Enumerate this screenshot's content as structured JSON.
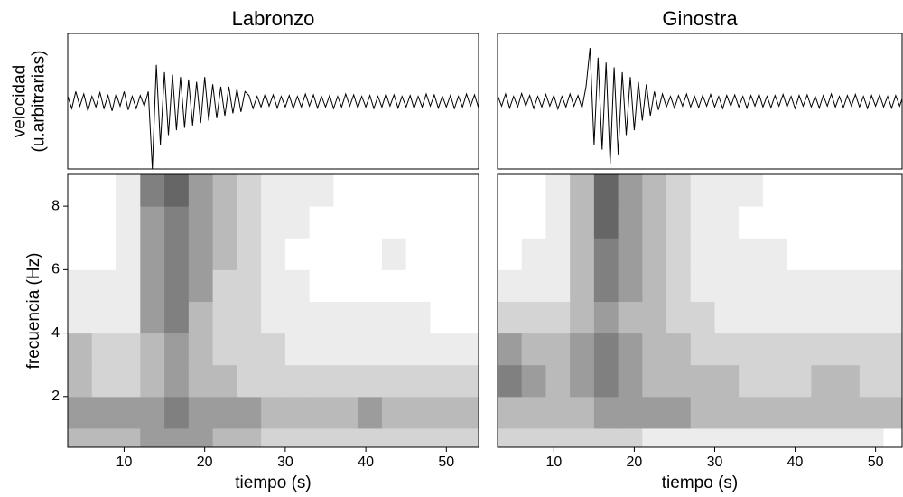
{
  "chart_data": [
    {
      "type": "line",
      "title": "Labronzo",
      "ylabel": [
        "velocidad",
        "(u.arbitrarias)"
      ],
      "color": "#000000",
      "xlim": [
        3,
        54
      ],
      "ylim": [
        -1.4,
        1.4
      ],
      "x": [
        3,
        3.5,
        4,
        4.5,
        5,
        5.5,
        6,
        6.5,
        7,
        7.5,
        8,
        8.5,
        9,
        9.5,
        10,
        10.5,
        11,
        11.5,
        12,
        12.5,
        13,
        13.5,
        14,
        14.5,
        15,
        15.5,
        16,
        16.5,
        17,
        17.5,
        18,
        18.5,
        19,
        19.5,
        20,
        20.5,
        21,
        21.5,
        22,
        22.5,
        23,
        23.5,
        24,
        24.5,
        25,
        25.5,
        26,
        26.5,
        27,
        27.5,
        28,
        28.5,
        29,
        29.5,
        30,
        30.5,
        31,
        31.5,
        32,
        32.5,
        33,
        33.5,
        34,
        34.5,
        35,
        35.5,
        36,
        36.5,
        37,
        37.5,
        38,
        38.5,
        39,
        39.5,
        40,
        40.5,
        41,
        41.5,
        42,
        42.5,
        43,
        43.5,
        44,
        44.5,
        45,
        45.5,
        46,
        46.5,
        47,
        47.5,
        48,
        48.5,
        49,
        49.5,
        50,
        50.5,
        51,
        51.5,
        52,
        52.5,
        53,
        53.5,
        54
      ],
      "values": [
        0.1,
        -0.15,
        0.2,
        -0.1,
        0.15,
        -0.2,
        0.1,
        -0.12,
        0.18,
        -0.15,
        0.12,
        -0.2,
        0.15,
        -0.1,
        0.2,
        -0.18,
        0.1,
        -0.15,
        0.12,
        -0.1,
        0.2,
        -1.4,
        0.75,
        -0.9,
        0.6,
        -0.7,
        0.55,
        -0.6,
        0.5,
        -0.55,
        0.45,
        -0.5,
        0.4,
        -0.45,
        0.5,
        -0.4,
        0.35,
        -0.35,
        0.3,
        -0.3,
        0.3,
        -0.25,
        0.25,
        -0.22,
        0.2,
        0.12,
        -0.15,
        0.1,
        -0.12,
        0.15,
        -0.1,
        0.13,
        -0.14,
        0.1,
        -0.12,
        0.12,
        -0.15,
        0.1,
        -0.12,
        0.15,
        -0.1,
        0.13,
        -0.14,
        0.1,
        -0.12,
        0.12,
        -0.15,
        0.1,
        -0.12,
        0.15,
        -0.1,
        0.13,
        -0.14,
        0.1,
        -0.12,
        0.12,
        -0.15,
        0.1,
        -0.12,
        0.15,
        -0.1,
        0.13,
        -0.14,
        0.1,
        -0.12,
        0.12,
        -0.15,
        0.1,
        -0.12,
        0.15,
        -0.1,
        0.13,
        -0.14,
        0.1,
        -0.12,
        0.12,
        -0.15,
        0.1,
        -0.12,
        0.15,
        -0.1,
        0.13,
        -0.14
      ]
    },
    {
      "type": "heatmap",
      "xlabel": "tiempo (s)",
      "ylabel": [
        "frecuencia (Hz)"
      ],
      "xlim": [
        3,
        54
      ],
      "ylim": [
        0.4,
        9
      ],
      "xticks": [
        10,
        20,
        30,
        40,
        50
      ],
      "yticks": [
        2,
        4,
        6,
        8
      ],
      "colors": [
        "#ffffff",
        "#ececec",
        "#d4d4d4",
        "#bababa",
        "#9c9c9c",
        "#808080",
        "#666666"
      ],
      "xbins": [
        3,
        6,
        9,
        12,
        15,
        18,
        21,
        24,
        27,
        30,
        33,
        36,
        39,
        42,
        45,
        48,
        51,
        54
      ],
      "ybins": [
        0.4,
        1,
        2,
        3,
        4,
        5,
        6,
        7,
        8,
        9
      ],
      "z": [
        [
          3,
          3,
          3,
          4,
          4,
          4,
          3,
          3,
          2,
          2,
          2,
          2,
          2,
          2,
          2,
          2,
          2
        ],
        [
          4,
          4,
          4,
          4,
          5,
          4,
          4,
          4,
          3,
          3,
          3,
          3,
          4,
          3,
          3,
          3,
          3
        ],
        [
          3,
          2,
          2,
          3,
          4,
          3,
          3,
          2,
          2,
          2,
          2,
          2,
          2,
          2,
          2,
          2,
          2
        ],
        [
          3,
          2,
          2,
          3,
          4,
          3,
          2,
          2,
          2,
          1,
          1,
          1,
          1,
          1,
          1,
          1,
          1
        ],
        [
          1,
          1,
          1,
          4,
          5,
          3,
          2,
          2,
          1,
          1,
          1,
          1,
          1,
          1,
          1,
          0,
          0
        ],
        [
          1,
          1,
          1,
          4,
          5,
          4,
          2,
          2,
          1,
          1,
          0,
          0,
          0,
          0,
          0,
          0,
          0
        ],
        [
          0,
          0,
          1,
          4,
          5,
          4,
          3,
          2,
          1,
          0,
          0,
          0,
          0,
          1,
          0,
          0,
          0
        ],
        [
          0,
          0,
          1,
          4,
          5,
          4,
          3,
          2,
          1,
          1,
          0,
          0,
          0,
          0,
          0,
          0,
          0
        ],
        [
          0,
          0,
          1,
          5,
          6,
          4,
          3,
          2,
          1,
          1,
          1,
          0,
          0,
          0,
          0,
          0,
          0
        ]
      ]
    },
    {
      "type": "line",
      "title": "Ginostra",
      "color": "#000000",
      "xlim": [
        3,
        53.3
      ],
      "ylim": [
        -1.4,
        1.4
      ],
      "x": [
        3,
        3.5,
        4,
        4.5,
        5,
        5.5,
        6,
        6.5,
        7,
        7.5,
        8,
        8.5,
        9,
        9.5,
        10,
        10.5,
        11,
        11.5,
        12,
        12.5,
        13,
        13.5,
        14,
        14.5,
        15,
        15.5,
        16,
        16.5,
        17,
        17.5,
        18,
        18.5,
        19,
        19.5,
        20,
        20.5,
        21,
        21.5,
        22,
        22.5,
        23,
        23.5,
        24,
        24.5,
        25,
        25.5,
        26,
        26.5,
        27,
        27.5,
        28,
        28.5,
        29,
        29.5,
        30,
        30.5,
        31,
        31.5,
        32,
        32.5,
        33,
        33.5,
        34,
        34.5,
        35,
        35.5,
        36,
        36.5,
        37,
        37.5,
        38,
        38.5,
        39,
        39.5,
        40,
        40.5,
        41,
        41.5,
        42,
        42.5,
        43,
        43.5,
        44,
        44.5,
        45,
        45.5,
        46,
        46.5,
        47,
        47.5,
        48,
        48.5,
        49,
        49.5,
        50,
        50.5,
        51,
        51.5,
        52,
        52.5,
        53,
        53.5,
        54
      ],
      "values": [
        0.12,
        -0.1,
        0.15,
        -0.14,
        0.1,
        -0.12,
        0.16,
        -0.1,
        0.12,
        -0.15,
        0.1,
        -0.12,
        0.14,
        -0.1,
        0.12,
        -0.16,
        0.1,
        -0.12,
        0.15,
        -0.1,
        0.12,
        -0.14,
        0.3,
        1.1,
        -0.9,
        0.9,
        -1.0,
        0.8,
        -1.3,
        0.7,
        -1.1,
        0.6,
        -0.7,
        0.5,
        -0.6,
        0.4,
        -0.4,
        0.35,
        -0.3,
        0.2,
        -0.18,
        0.15,
        -0.12,
        0.1,
        -0.14,
        0.12,
        -0.1,
        0.15,
        -0.12,
        0.1,
        -0.13,
        0.12,
        -0.1,
        0.14,
        -0.12,
        0.1,
        -0.15,
        0.12,
        -0.1,
        0.13,
        -0.12,
        0.1,
        -0.14,
        0.12,
        -0.1,
        0.15,
        -0.12,
        0.1,
        -0.13,
        0.12,
        -0.1,
        0.14,
        -0.12,
        0.1,
        -0.15,
        0.12,
        -0.1,
        0.13,
        -0.12,
        0.1,
        -0.14,
        0.12,
        -0.1,
        0.15,
        -0.12,
        0.1,
        -0.13,
        0.12,
        -0.1,
        0.14,
        -0.12,
        0.1,
        -0.15,
        0.12,
        -0.1,
        0.13,
        -0.12,
        0.1,
        -0.14,
        0.12,
        -0.1,
        0.15,
        -0.12
      ]
    },
    {
      "type": "heatmap",
      "xlabel": "tiempo (s)",
      "xlim": [
        3,
        53.3
      ],
      "ylim": [
        0.4,
        9
      ],
      "xticks": [
        10,
        20,
        30,
        40,
        50
      ],
      "colors": [
        "#ffffff",
        "#ececec",
        "#d4d4d4",
        "#bababa",
        "#9c9c9c",
        "#808080",
        "#666666"
      ],
      "xbins": [
        3,
        6,
        9,
        12,
        15,
        18,
        21,
        24,
        27,
        30,
        33,
        36,
        39,
        42,
        45,
        48,
        51,
        54
      ],
      "ybins": [
        0.4,
        1,
        2,
        3,
        4,
        5,
        6,
        7,
        8,
        9
      ],
      "z": [
        [
          2,
          2,
          2,
          2,
          2,
          2,
          1,
          1,
          1,
          1,
          1,
          1,
          1,
          1,
          1,
          1,
          0
        ],
        [
          3,
          3,
          3,
          3,
          4,
          4,
          4,
          4,
          3,
          3,
          3,
          3,
          3,
          3,
          3,
          3,
          3
        ],
        [
          5,
          4,
          3,
          4,
          5,
          4,
          3,
          3,
          3,
          3,
          2,
          2,
          2,
          3,
          3,
          2,
          2
        ],
        [
          4,
          3,
          3,
          4,
          5,
          4,
          3,
          3,
          2,
          2,
          2,
          2,
          2,
          2,
          2,
          2,
          2
        ],
        [
          2,
          2,
          2,
          3,
          4,
          3,
          3,
          2,
          2,
          1,
          1,
          1,
          1,
          1,
          1,
          1,
          1
        ],
        [
          1,
          1,
          1,
          3,
          5,
          4,
          3,
          2,
          1,
          1,
          1,
          1,
          1,
          1,
          1,
          1,
          1
        ],
        [
          0,
          1,
          1,
          3,
          5,
          4,
          3,
          2,
          1,
          1,
          1,
          1,
          0,
          0,
          0,
          0,
          0
        ],
        [
          0,
          0,
          1,
          3,
          6,
          4,
          3,
          2,
          1,
          1,
          0,
          0,
          0,
          0,
          0,
          0,
          0
        ],
        [
          0,
          0,
          1,
          3,
          6,
          4,
          3,
          2,
          1,
          1,
          1,
          0,
          0,
          0,
          0,
          0,
          0
        ]
      ]
    }
  ]
}
